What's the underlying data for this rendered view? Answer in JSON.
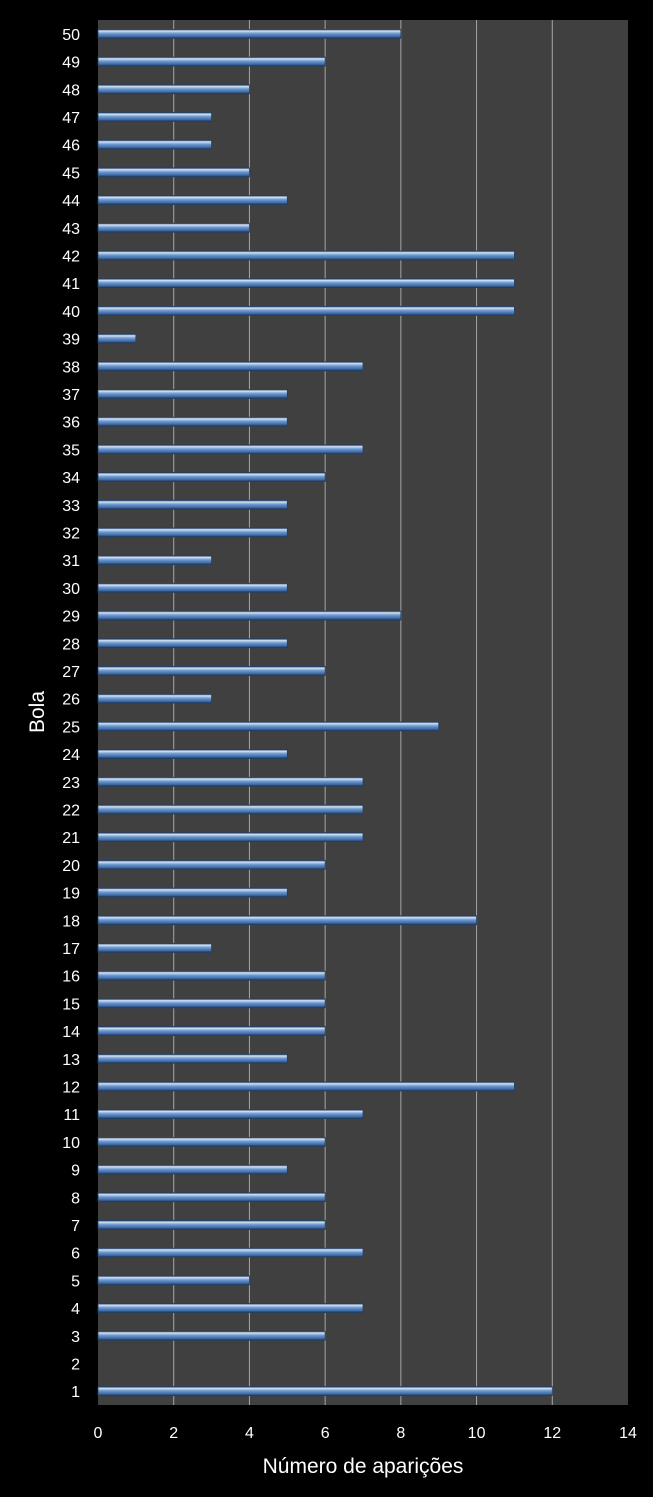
{
  "chart_data": {
    "type": "bar",
    "orientation": "horizontal",
    "xlabel": "Número de aparições",
    "ylabel": "Bola",
    "xlim": [
      0,
      14
    ],
    "x_ticks": [
      "0",
      "2",
      "4",
      "6",
      "8",
      "10",
      "12",
      "14"
    ],
    "grid": true,
    "categories": [
      "1",
      "2",
      "3",
      "4",
      "5",
      "6",
      "7",
      "8",
      "9",
      "10",
      "11",
      "12",
      "13",
      "14",
      "15",
      "16",
      "17",
      "18",
      "19",
      "20",
      "21",
      "22",
      "23",
      "24",
      "25",
      "26",
      "27",
      "28",
      "29",
      "30",
      "31",
      "32",
      "33",
      "34",
      "35",
      "36",
      "37",
      "38",
      "39",
      "40",
      "41",
      "42",
      "43",
      "44",
      "45",
      "46",
      "47",
      "48",
      "49",
      "50"
    ],
    "values": [
      12,
      0,
      6,
      7,
      4,
      7,
      6,
      6,
      5,
      6,
      7,
      11,
      5,
      6,
      6,
      6,
      3,
      10,
      5,
      6,
      7,
      7,
      7,
      5,
      9,
      3,
      6,
      5,
      8,
      5,
      3,
      5,
      5,
      6,
      7,
      5,
      5,
      7,
      1,
      11,
      11,
      11,
      4,
      5,
      4,
      3,
      3,
      4,
      6,
      8
    ],
    "colors": {
      "background": "#000000",
      "plot_area": "#404040",
      "grid": "#a6a6a6",
      "bar_fill": "#4f81bd",
      "bar_highlight": "#c6d9f1",
      "bar_shadow": "#243f60",
      "text": "#ffffff"
    }
  }
}
